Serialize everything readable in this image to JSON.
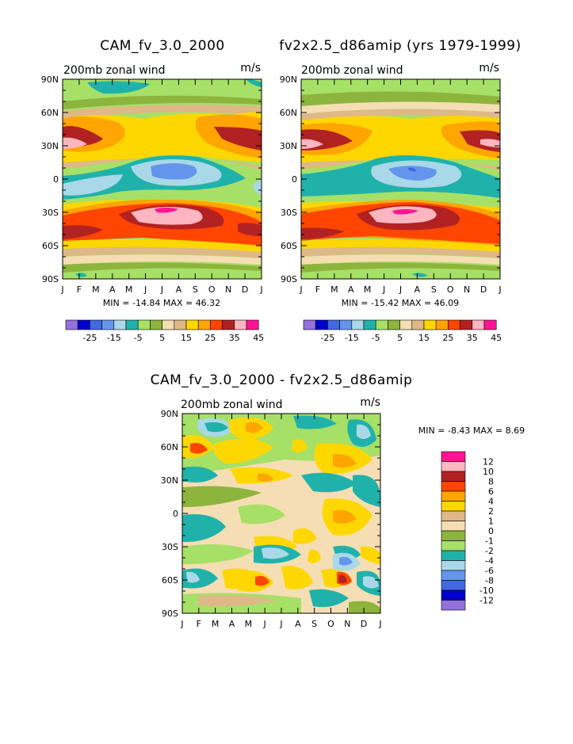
{
  "chart_data": [
    {
      "type": "heatmap",
      "title": "CAM_fv_3.0_2000",
      "subtitle": "200mb zonal wind",
      "units": "m/s",
      "x_ticks": [
        "J",
        "F",
        "M",
        "A",
        "M",
        "J",
        "J",
        "A",
        "S",
        "O",
        "N",
        "D",
        "J"
      ],
      "y_ticks": [
        "90N",
        "60N",
        "30N",
        "0",
        "30S",
        "60S",
        "90S"
      ],
      "stats": "MIN = -14.84 MAX =  46.32",
      "min": -14.84,
      "max": 46.32,
      "colorbar_labels": [
        "-25",
        "-15",
        "-5",
        "5",
        "15",
        "25",
        "35",
        "45"
      ],
      "colorbar_colors": [
        "#9370db",
        "#0000cd",
        "#4169e1",
        "#6495ed",
        "#a9d8e8",
        "#20b2aa",
        "#a6e067",
        "#8db43c",
        "#f5deb3",
        "#deb887",
        "#ffd700",
        "#ffa500",
        "#ff4500",
        "#b22222",
        "#ffb6c1",
        "#ff1493"
      ]
    },
    {
      "type": "heatmap",
      "title": "fv2x2.5_d86amip (yrs 1979-1999)",
      "subtitle": "200mb zonal wind",
      "units": "m/s",
      "x_ticks": [
        "J",
        "F",
        "M",
        "A",
        "M",
        "J",
        "J",
        "A",
        "S",
        "O",
        "N",
        "D",
        "J"
      ],
      "y_ticks": [
        "90N",
        "60N",
        "30N",
        "0",
        "30S",
        "60S",
        "90S"
      ],
      "stats": "MIN = -15.42 MAX =  46.09",
      "min": -15.42,
      "max": 46.09,
      "colorbar_labels": [
        "-25",
        "-15",
        "-5",
        "5",
        "15",
        "25",
        "35",
        "45"
      ],
      "colorbar_colors": [
        "#9370db",
        "#0000cd",
        "#4169e1",
        "#6495ed",
        "#a9d8e8",
        "#20b2aa",
        "#a6e067",
        "#8db43c",
        "#f5deb3",
        "#deb887",
        "#ffd700",
        "#ffa500",
        "#ff4500",
        "#b22222",
        "#ffb6c1",
        "#ff1493"
      ]
    },
    {
      "type": "heatmap",
      "title": "CAM_fv_3.0_2000 - fv2x2.5_d86amip",
      "subtitle": "200mb zonal wind",
      "units": "m/s",
      "x_ticks": [
        "J",
        "F",
        "M",
        "A",
        "M",
        "J",
        "J",
        "A",
        "S",
        "O",
        "N",
        "D",
        "J"
      ],
      "y_ticks": [
        "90N",
        "60N",
        "30N",
        "0",
        "30S",
        "60S",
        "90S"
      ],
      "stats": "MIN =  -8.43 MAX =   8.69",
      "min": -8.43,
      "max": 8.69,
      "colorbar_labels": [
        "12",
        "10",
        "8",
        "6",
        "4",
        "2",
        "1",
        "0",
        "-1",
        "-2",
        "-4",
        "-6",
        "-8",
        "-10",
        "-12"
      ],
      "colorbar_colors": [
        "#ff1493",
        "#ffb6c1",
        "#b22222",
        "#ff4500",
        "#ffa500",
        "#ffd700",
        "#deb887",
        "#f5deb3",
        "#8db43c",
        "#a6e067",
        "#20b2aa",
        "#a9d8e8",
        "#6495ed",
        "#4169e1",
        "#0000cd",
        "#9370db"
      ]
    }
  ]
}
